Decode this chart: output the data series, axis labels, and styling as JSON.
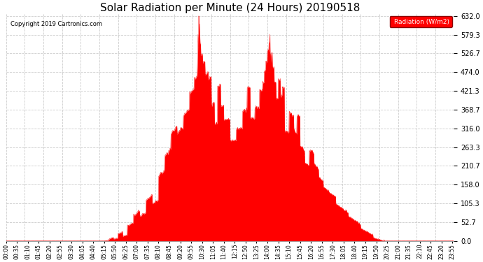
{
  "title": "Solar Radiation per Minute (24 Hours) 20190518",
  "copyright_text": "Copyright 2019 Cartronics.com",
  "legend_label": "Radiation (W/m2)",
  "title_fontsize": 11,
  "bg_color": "#ffffff",
  "plot_bg_color": "#ffffff",
  "fill_color": "#ff0000",
  "line_color": "#ff0000",
  "grid_color": "#cccccc",
  "ytick_labels": [
    "0.0",
    "52.7",
    "105.3",
    "158.0",
    "210.7",
    "263.3",
    "316.0",
    "368.7",
    "421.3",
    "474.0",
    "526.7",
    "579.3",
    "632.0"
  ],
  "ytick_values": [
    0.0,
    52.7,
    105.3,
    158.0,
    210.7,
    263.3,
    316.0,
    368.7,
    421.3,
    474.0,
    526.7,
    579.3,
    632.0
  ],
  "ymin": 0.0,
  "ymax": 632.0,
  "total_minutes": 1440,
  "sunrise_minute": 315,
  "sunset_minute": 1215,
  "xlabel_interval": 35
}
